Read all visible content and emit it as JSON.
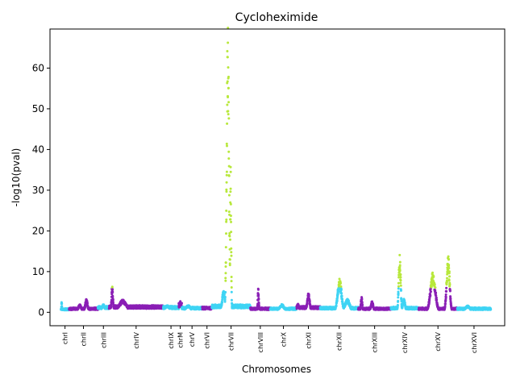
{
  "chart_data": {
    "type": "scatter",
    "title": "Cycloheximide",
    "xlabel": "Chromosomes",
    "ylabel": "-log10(pval)",
    "ylim": [
      -3.3,
      69.6
    ],
    "yticks": [
      0,
      10,
      20,
      30,
      40,
      50,
      60
    ],
    "grid": false,
    "legend": "none",
    "significance_threshold": 6,
    "colors": {
      "odd_chromosome": "#8a1fb5",
      "even_chromosome": "#3fd4f4",
      "significant": "#b8e83c"
    },
    "chromosomes": [
      {
        "name": "chrI",
        "start": 0,
        "end": 0.23,
        "label_x": 0.115,
        "color_group": "even_chromosome",
        "peaks": [
          {
            "x": 0.02,
            "height": 2.5,
            "width": 0.01
          },
          {
            "x": 0.12,
            "height": 0.6,
            "width": 0.05
          }
        ],
        "base": 0.5
      },
      {
        "name": "chrII",
        "start": 0.23,
        "end": 1.043,
        "label_x": 0.636,
        "color_group": "odd_chromosome",
        "peaks": [
          {
            "x": 0.72,
            "height": 3.0,
            "width": 0.05
          },
          {
            "x": 0.53,
            "height": 1.8,
            "width": 0.06
          }
        ],
        "base": 0.6
      },
      {
        "name": "chrIII",
        "start": 1.043,
        "end": 1.36,
        "label_x": 1.201,
        "color_group": "even_chromosome",
        "peaks": [
          {
            "x": 1.2,
            "height": 1.8,
            "width": 0.05
          }
        ],
        "base": 0.8
      },
      {
        "name": "chrIV",
        "start": 1.36,
        "end": 2.892,
        "label_x": 2.126,
        "color_group": "odd_chromosome",
        "peaks": [
          {
            "x": 1.45,
            "height": 6.0,
            "width": 0.03
          },
          {
            "x": 1.75,
            "height": 2.8,
            "width": 0.15
          }
        ],
        "base": 0.9
      },
      {
        "name": "chrIX",
        "start": 2.892,
        "end": 3.332,
        "label_x": 3.112,
        "color_group": "even_chromosome",
        "peaks": [
          {
            "x": 3.0,
            "height": 1.6,
            "width": 0.1
          }
        ],
        "base": 0.8
      },
      {
        "name": "chrM",
        "start": 3.332,
        "end": 3.418,
        "label_x": 3.375,
        "color_group": "odd_chromosome",
        "peaks": [
          {
            "x": 3.375,
            "height": 2.5,
            "width": 0.02
          }
        ],
        "base": 1.2
      },
      {
        "name": "chrV",
        "start": 3.418,
        "end": 3.995,
        "label_x": 3.707,
        "color_group": "even_chromosome",
        "peaks": [
          {
            "x": 3.6,
            "height": 1.6,
            "width": 0.1
          }
        ],
        "base": 0.7
      },
      {
        "name": "chrVI",
        "start": 3.995,
        "end": 4.265,
        "label_x": 4.13,
        "color_group": "odd_chromosome",
        "peaks": [
          {
            "x": 4.12,
            "height": 1.2,
            "width": 0.05
          }
        ],
        "base": 0.7
      },
      {
        "name": "chrVII",
        "start": 4.265,
        "end": 5.356,
        "label_x": 4.811,
        "color_group": "even_chromosome",
        "peaks": [
          {
            "x": 4.72,
            "height": 66.0,
            "width": 0.045
          },
          {
            "x": 4.8,
            "height": 33.0,
            "width": 0.02
          },
          {
            "x": 4.6,
            "height": 5.0,
            "width": 0.06
          }
        ],
        "base": 1.0
      },
      {
        "name": "chrVIII",
        "start": 5.356,
        "end": 5.919,
        "label_x": 5.638,
        "color_group": "odd_chromosome",
        "peaks": [
          {
            "x": 5.58,
            "height": 5.5,
            "width": 0.02
          }
        ],
        "base": 0.6
      },
      {
        "name": "chrX",
        "start": 5.919,
        "end": 6.664,
        "label_x": 6.292,
        "color_group": "even_chromosome",
        "peaks": [
          {
            "x": 6.25,
            "height": 1.8,
            "width": 0.1
          }
        ],
        "base": 0.6
      },
      {
        "name": "chrXI",
        "start": 6.664,
        "end": 7.331,
        "label_x": 6.998,
        "color_group": "odd_chromosome",
        "peaks": [
          {
            "x": 7.0,
            "height": 4.3,
            "width": 0.05
          },
          {
            "x": 6.7,
            "height": 2.0,
            "width": 0.04
          }
        ],
        "base": 0.8
      },
      {
        "name": "chrXII",
        "start": 7.331,
        "end": 8.409,
        "label_x": 7.87,
        "color_group": "even_chromosome",
        "peaks": [
          {
            "x": 7.88,
            "height": 7.5,
            "width": 0.08
          },
          {
            "x": 8.1,
            "height": 3.0,
            "width": 0.1
          }
        ],
        "base": 0.7
      },
      {
        "name": "chrXIII",
        "start": 8.409,
        "end": 9.333,
        "label_x": 8.871,
        "color_group": "odd_chromosome",
        "peaks": [
          {
            "x": 8.5,
            "height": 3.5,
            "width": 0.03
          },
          {
            "x": 8.8,
            "height": 2.5,
            "width": 0.05
          }
        ],
        "base": 0.6
      },
      {
        "name": "chrXIV",
        "start": 9.333,
        "end": 10.117,
        "label_x": 9.725,
        "color_group": "even_chromosome",
        "peaks": [
          {
            "x": 9.58,
            "height": 13.0,
            "width": 0.04
          },
          {
            "x": 9.7,
            "height": 3.0,
            "width": 0.05
          }
        ],
        "base": 0.7
      },
      {
        "name": "chrXV",
        "start": 10.117,
        "end": 11.208,
        "label_x": 10.662,
        "color_group": "odd_chromosome",
        "peaks": [
          {
            "x": 10.52,
            "height": 9.0,
            "width": 0.1
          },
          {
            "x": 10.95,
            "height": 13.0,
            "width": 0.06
          }
        ],
        "base": 0.6
      },
      {
        "name": "chrXVI",
        "start": 11.208,
        "end": 12.156,
        "label_x": 11.682,
        "color_group": "even_chromosome",
        "peaks": [
          {
            "x": 11.5,
            "height": 1.5,
            "width": 0.1
          }
        ],
        "base": 0.6
      }
    ],
    "xlim": [
      -0.31,
      12.55
    ]
  }
}
